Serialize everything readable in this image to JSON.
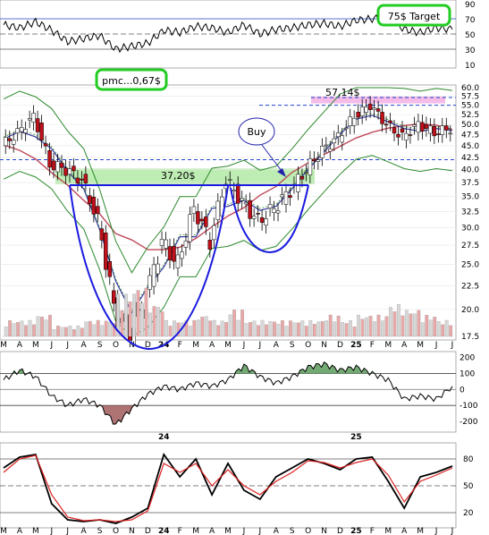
{
  "colors": {
    "up_candle": "#ffffff",
    "down_candle": "#c0101a",
    "wick": "#000000",
    "ma_fast": "#3a3aa0",
    "ma_slow": "#c04a5a",
    "bollinger": "#2e8a2e",
    "cup_line": "#1a1adf",
    "highlight_green": "#aee8a0",
    "highlight_pink": "#f2a0e0",
    "annotation_border": "#22cc22",
    "volume_up": "#d8d8d8",
    "volume_down": "#e8a8a8",
    "cci_positive": "#5a9a5a",
    "cci_negative": "#a05a5a",
    "stoch_k": "#000000",
    "stoch_d": "#dd2222"
  },
  "annotations": {
    "target": "75$ Target",
    "pmc": "pmc...0,67$",
    "buy": "Buy",
    "level_resistance": "37,20$",
    "level_high": "57,14$"
  },
  "chart_data": [
    {
      "type": "line",
      "panel": "RSI",
      "yticks": [
        10,
        30,
        50,
        70,
        90
      ],
      "reference_lines": [
        30,
        50,
        70
      ],
      "ylim": [
        10,
        90
      ],
      "x": [
        "M",
        "A",
        "M",
        "J",
        "J",
        "A",
        "S",
        "O",
        "N",
        "D",
        "24",
        "F",
        "M",
        "A",
        "M",
        "J",
        "J",
        "A",
        "S",
        "O",
        "N",
        "D",
        "25",
        "F",
        "M",
        "A",
        "M",
        "J",
        "J"
      ],
      "series": [
        {
          "values": [
            62,
            58,
            66,
            55,
            40,
            44,
            48,
            30,
            34,
            38,
            55,
            52,
            60,
            58,
            52,
            62,
            50,
            56,
            58,
            62,
            64,
            60,
            68,
            70,
            72,
            56,
            52,
            58,
            56
          ]
        }
      ]
    },
    {
      "type": "candlestick",
      "panel": "price",
      "ylabel": "",
      "ylim": [
        17.5,
        60
      ],
      "yscale": "log",
      "yticks": [
        17.5,
        20.0,
        22.5,
        25.0,
        27.5,
        30.0,
        32.5,
        35.0,
        37.5,
        40.0,
        42.5,
        45.0,
        47.5,
        50.0,
        52.5,
        55.0,
        57.5,
        60.0
      ],
      "x": [
        "M",
        "A",
        "M",
        "J",
        "J",
        "A",
        "S",
        "O",
        "N",
        "D",
        "24",
        "F",
        "M",
        "A",
        "M",
        "J",
        "J",
        "A",
        "S",
        "O",
        "N",
        "D",
        "25",
        "F",
        "M",
        "A",
        "M",
        "J",
        "J"
      ],
      "series": [
        {
          "values": [
            45,
            48,
            52,
            41,
            40,
            38,
            31,
            20,
            18,
            21,
            28,
            25,
            33,
            28,
            38,
            34,
            31,
            33,
            36,
            40,
            44,
            47,
            52,
            55,
            50,
            47,
            50,
            48,
            49
          ]
        }
      ],
      "reference_lines": [
        37.2,
        42.0,
        55.0,
        57.14
      ]
    },
    {
      "type": "bar",
      "panel": "volume",
      "x": [
        "M",
        "A",
        "M",
        "J",
        "J",
        "A",
        "S",
        "O",
        "N",
        "D",
        "24",
        "F",
        "M",
        "A",
        "M",
        "J",
        "J",
        "A",
        "S",
        "O",
        "N",
        "D",
        "25",
        "F",
        "M",
        "A",
        "M",
        "J",
        "J"
      ],
      "series": [
        {
          "values": [
            3,
            3,
            4,
            2,
            2,
            3,
            3,
            8,
            9,
            6,
            3,
            3,
            4,
            3,
            5,
            3,
            3,
            3,
            3,
            3,
            4,
            3,
            4,
            4,
            6,
            5,
            4,
            3,
            4
          ]
        }
      ]
    },
    {
      "type": "area",
      "panel": "CCI",
      "yticks": [
        -200,
        -100,
        0,
        100,
        200
      ],
      "ylim": [
        -250,
        220
      ],
      "reference_lines": [
        -100,
        0,
        100
      ],
      "x": [
        "M",
        "A",
        "M",
        "J",
        "J",
        "A",
        "S",
        "O",
        "N",
        "D",
        "24",
        "F",
        "M",
        "A",
        "M",
        "J",
        "J",
        "A",
        "S",
        "O",
        "N",
        "D",
        "25",
        "F",
        "M",
        "A",
        "M",
        "J",
        "J"
      ],
      "series": [
        {
          "values": [
            60,
            120,
            80,
            -40,
            -100,
            -60,
            -100,
            -220,
            -120,
            -30,
            20,
            0,
            40,
            20,
            60,
            150,
            80,
            40,
            80,
            140,
            160,
            120,
            140,
            100,
            60,
            -60,
            -40,
            -60,
            20
          ]
        }
      ]
    },
    {
      "type": "line",
      "panel": "Stochastic",
      "yticks": [
        20,
        50,
        80
      ],
      "ylim": [
        5,
        95
      ],
      "reference_lines": [
        20,
        50,
        80
      ],
      "x": [
        "M",
        "A",
        "M",
        "J",
        "J",
        "A",
        "S",
        "O",
        "N",
        "D",
        "24",
        "F",
        "M",
        "A",
        "M",
        "J",
        "J",
        "A",
        "S",
        "O",
        "N",
        "D",
        "25",
        "F",
        "M",
        "A",
        "M",
        "J",
        "J"
      ],
      "series": [
        {
          "values": [
            70,
            82,
            85,
            30,
            12,
            10,
            12,
            8,
            15,
            25,
            85,
            60,
            80,
            40,
            75,
            45,
            35,
            60,
            70,
            80,
            75,
            68,
            80,
            82,
            55,
            25,
            60,
            65,
            72
          ]
        },
        {
          "values": [
            65,
            80,
            84,
            40,
            15,
            11,
            12,
            10,
            12,
            22,
            75,
            65,
            75,
            50,
            68,
            50,
            40,
            55,
            65,
            78,
            76,
            70,
            76,
            80,
            62,
            32,
            55,
            62,
            70
          ]
        }
      ]
    }
  ]
}
